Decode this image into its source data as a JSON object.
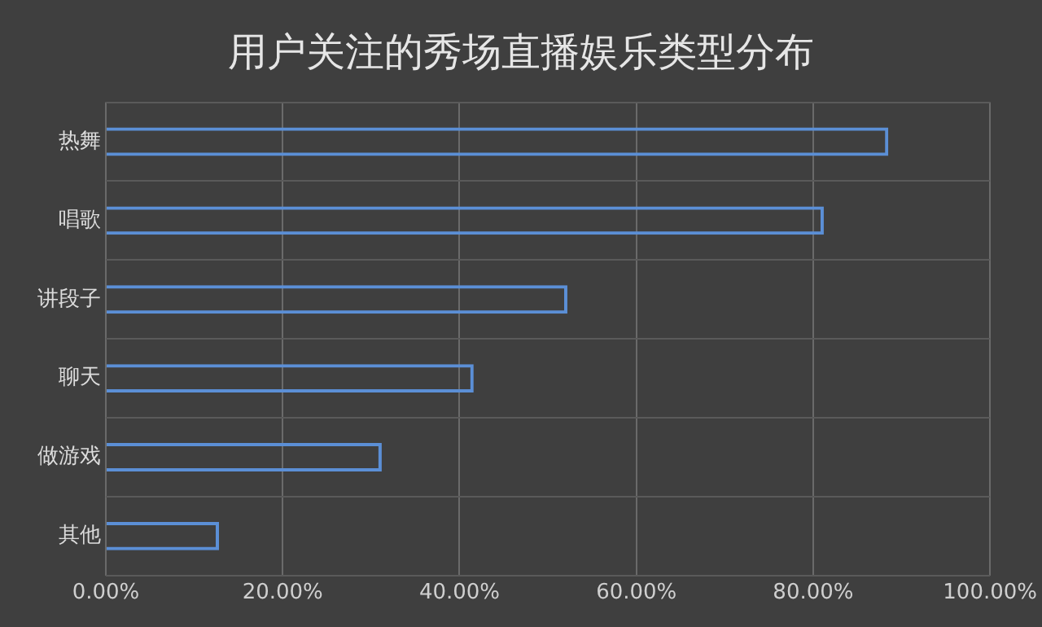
{
  "chart_data": {
    "type": "bar",
    "orientation": "horizontal",
    "title": "用户关注的秀场直播娱乐类型分布",
    "categories": [
      "热舞",
      "唱歌",
      "讲段子",
      "聊天",
      "做游戏",
      "其他"
    ],
    "values": [
      88.5,
      81.2,
      52.2,
      41.6,
      31.2,
      12.8
    ],
    "color": "#5b8fd6",
    "xlim": [
      0,
      100
    ],
    "xticks": [
      {
        "value": 0,
        "label": "0.00%"
      },
      {
        "value": 20,
        "label": "20.00%"
      },
      {
        "value": 40,
        "label": "40.00%"
      },
      {
        "value": 60,
        "label": "60.00%"
      },
      {
        "value": 80,
        "label": "80.00%"
      },
      {
        "value": 100,
        "label": "100.00%"
      }
    ],
    "grid": true,
    "legend": false
  }
}
